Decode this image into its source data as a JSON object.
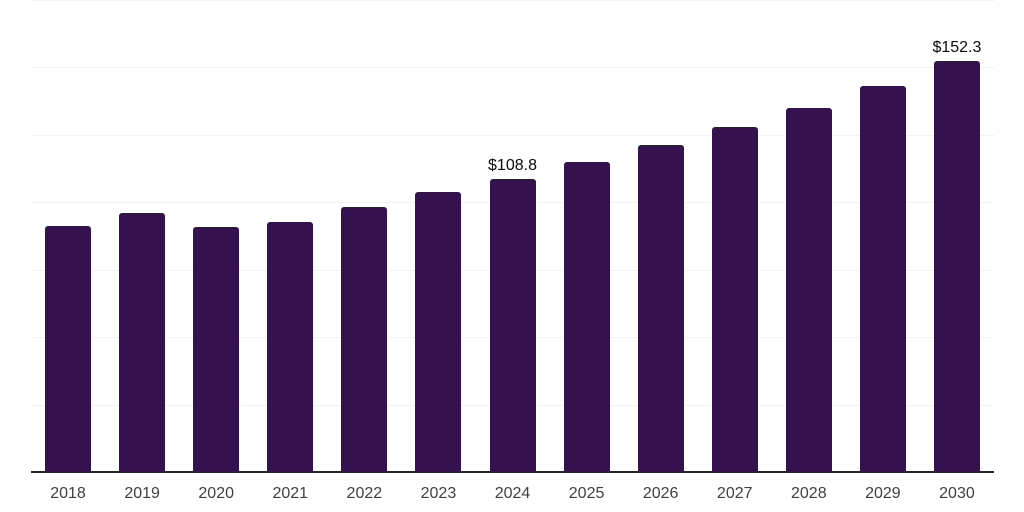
{
  "chart_data": {
    "type": "bar",
    "categories": [
      "2018",
      "2019",
      "2020",
      "2021",
      "2022",
      "2023",
      "2024",
      "2025",
      "2026",
      "2027",
      "2028",
      "2029",
      "2030"
    ],
    "values": [
      91.2,
      96.2,
      91.0,
      92.8,
      98.3,
      103.8,
      108.8,
      115.0,
      121.2,
      127.8,
      135.0,
      143.2,
      152.3
    ],
    "data_labels": [
      "",
      "",
      "",
      "",
      "",
      "",
      "$108.8",
      "",
      "",
      "",
      "",
      "",
      "$152.3"
    ],
    "title": "",
    "xlabel": "",
    "ylabel": "",
    "ylim": [
      0,
      175
    ],
    "grid_interval": 25,
    "grid": "horizontal-only",
    "legend_position": "none",
    "y_tick_labels_visible": false,
    "colors": {
      "bar": "#351150",
      "axis_line": "#262626",
      "gridline": "#f2f2f2",
      "tick_label": "#404040",
      "data_label": "#0a0a0a",
      "background": "#ffffff"
    }
  }
}
